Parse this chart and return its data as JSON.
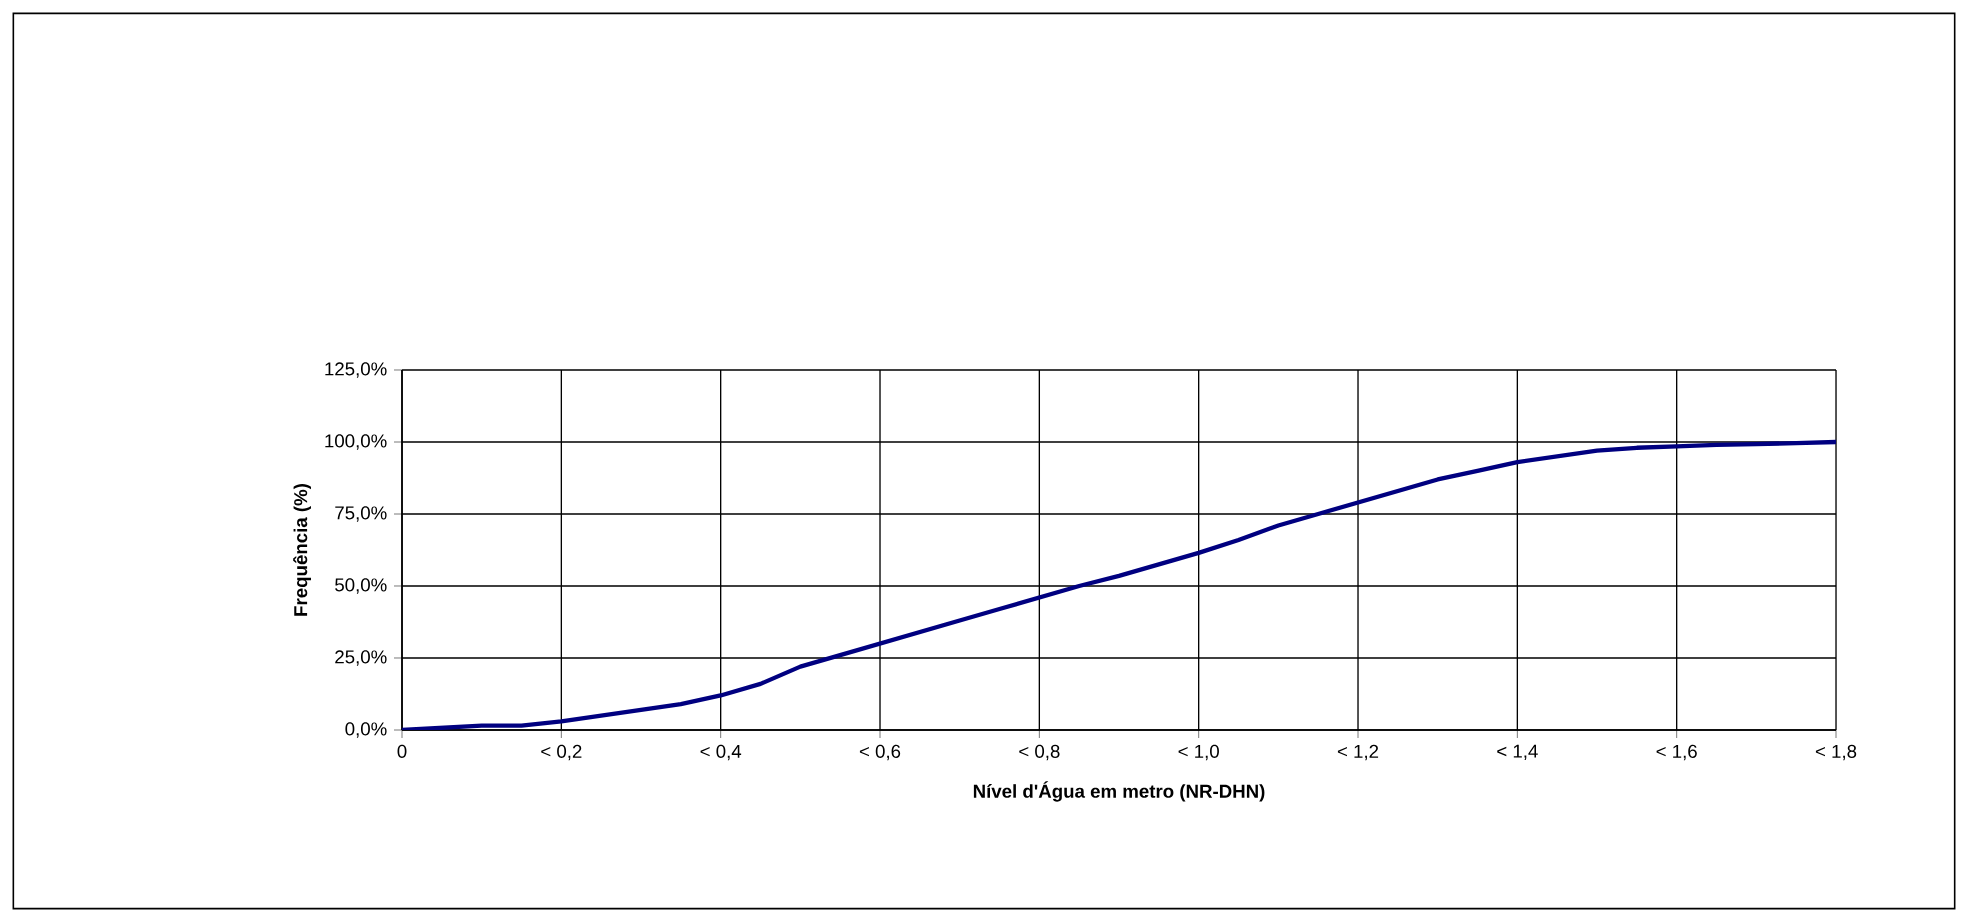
{
  "chart_data": {
    "type": "line",
    "xlabel": "Nível d'Água em metro (NR-DHN)",
    "ylabel": "Frequência (%)",
    "categories": [
      "0",
      null,
      null,
      null,
      "< 0,2",
      null,
      null,
      null,
      "< 0,4",
      null,
      null,
      null,
      "< 0,6",
      null,
      null,
      null,
      "< 0,8",
      null,
      null,
      null,
      "< 1,0",
      null,
      null,
      null,
      "< 1,2",
      null,
      null,
      null,
      "< 1,4",
      null,
      null,
      null,
      "< 1,6",
      null,
      null,
      null,
      "< 1,8"
    ],
    "series": [
      {
        "color": "#000080",
        "values": [
          0,
          0.75,
          1.5,
          1.5,
          3,
          5,
          7,
          9,
          12,
          16,
          22,
          26,
          30,
          34,
          38,
          42,
          46,
          50,
          53.5,
          57.5,
          61.5,
          66,
          71,
          75,
          79,
          83,
          87,
          90,
          93,
          95,
          97,
          98,
          98.5,
          99,
          99.3,
          99.6,
          100
        ]
      }
    ],
    "ylim": [
      0,
      125
    ],
    "yticks": [
      {
        "value": 0,
        "label": "0,0%"
      },
      {
        "value": 25,
        "label": "25,0%"
      },
      {
        "value": 50,
        "label": "50,0%"
      },
      {
        "value": 75,
        "label": "75,0%"
      },
      {
        "value": 100,
        "label": "100,0%"
      },
      {
        "value": 125,
        "label": "125,0%"
      }
    ],
    "grid": true,
    "marker": "none",
    "line_style": "solid"
  }
}
